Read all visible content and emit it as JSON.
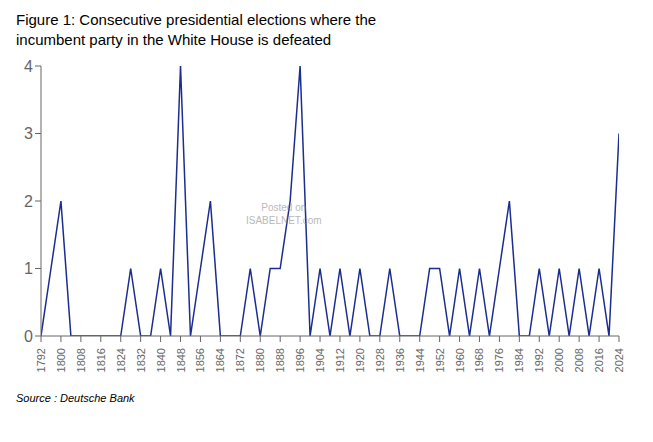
{
  "chart_data": {
    "type": "line",
    "title": "Figure 1: Consecutive presidential elections where the",
    "subtitle": "incumbent party in the White House is defeated",
    "x": [
      1792,
      1796,
      1800,
      1804,
      1808,
      1812,
      1816,
      1820,
      1824,
      1828,
      1832,
      1836,
      1840,
      1844,
      1848,
      1852,
      1856,
      1860,
      1864,
      1868,
      1872,
      1876,
      1880,
      1884,
      1888,
      1892,
      1896,
      1900,
      1904,
      1908,
      1912,
      1916,
      1920,
      1924,
      1928,
      1932,
      1936,
      1940,
      1944,
      1948,
      1952,
      1956,
      1960,
      1964,
      1968,
      1972,
      1976,
      1980,
      1984,
      1988,
      1992,
      1996,
      2000,
      2004,
      2008,
      2012,
      2016,
      2020,
      2024
    ],
    "values": [
      0,
      1,
      2,
      0,
      0,
      0,
      0,
      0,
      0,
      1,
      0,
      0,
      1,
      0,
      4,
      0,
      1,
      2,
      0,
      0,
      0,
      1,
      0,
      1,
      1,
      2,
      4,
      0,
      1,
      0,
      1,
      0,
      1,
      0,
      0,
      1,
      0,
      0,
      0,
      1,
      1,
      0,
      1,
      0,
      1,
      0,
      1,
      2,
      0,
      0,
      1,
      0,
      1,
      0,
      1,
      0,
      1,
      0,
      3
    ],
    "color": "#1B2D8F",
    "xlim": [
      1792,
      2024
    ],
    "xticks": [
      1792,
      1800,
      1808,
      1816,
      1824,
      1832,
      1840,
      1848,
      1856,
      1864,
      1872,
      1880,
      1888,
      1896,
      1904,
      1912,
      1920,
      1928,
      1936,
      1944,
      1952,
      1960,
      1968,
      1976,
      1984,
      1992,
      2000,
      2008,
      2016,
      2024
    ],
    "ylim": [
      0,
      4
    ],
    "yticks": [
      0,
      1,
      2,
      3,
      4
    ],
    "grid": false,
    "annotations": [
      "Source : Deutsche Bank",
      "Posted on\nISABELNET.com"
    ]
  }
}
